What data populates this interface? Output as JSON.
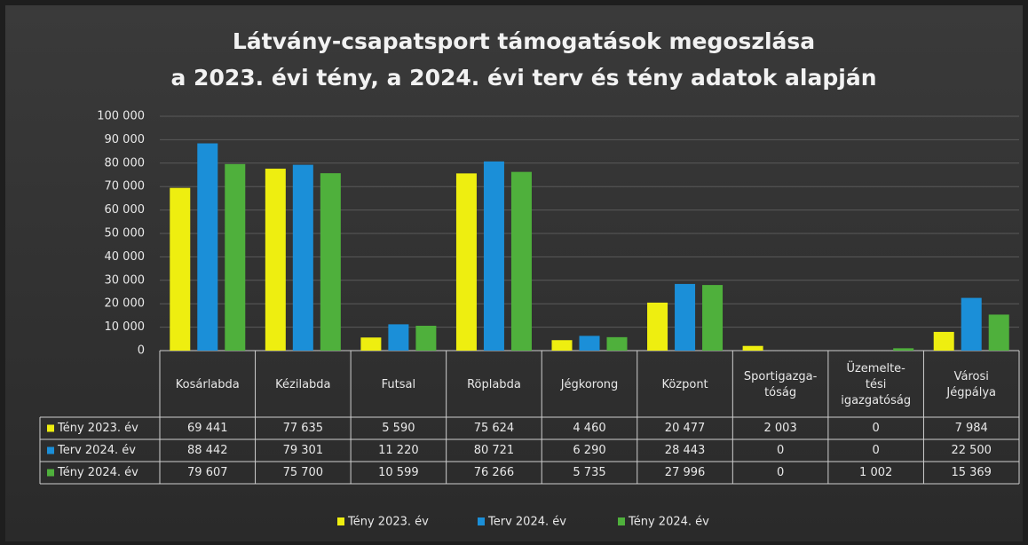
{
  "chart_data": {
    "type": "bar",
    "title": [
      "Látvány-csapatsport támogatások megoszlása",
      "a 2023. évi tény, a 2024. évi terv és tény adatok alapján"
    ],
    "categories": [
      "Kosárlabda",
      "Kézilabda",
      "Futsal",
      "Röplabda",
      "Jégkorong",
      "Központ",
      "Sportigazga-\ntóság",
      "Üzemelte-\ntési\nigazgatóság",
      "Városi\nJégpálya"
    ],
    "series": [
      {
        "name": "Tény 2023. év",
        "color": "#eeee10",
        "values": [
          69441,
          77635,
          5590,
          75624,
          4460,
          20477,
          2003,
          0,
          7984
        ],
        "value_labels": [
          "69 441",
          "77 635",
          "5 590",
          "75 624",
          "4 460",
          "20 477",
          "2 003",
          "0",
          "7 984"
        ]
      },
      {
        "name": "Terv 2024. év",
        "color": "#1b8fd8",
        "values": [
          88442,
          79301,
          11220,
          80721,
          6290,
          28443,
          0,
          0,
          22500
        ],
        "value_labels": [
          "88 442",
          "79 301",
          "11 220",
          "80 721",
          "6 290",
          "28 443",
          "0",
          "0",
          "22 500"
        ]
      },
      {
        "name": "Tény 2024. év",
        "color": "#4fb03c",
        "values": [
          79607,
          75700,
          10599,
          76266,
          5735,
          27996,
          0,
          1002,
          15369
        ],
        "value_labels": [
          "79 607",
          "75 700",
          "10 599",
          "76 266",
          "5 735",
          "27 996",
          "0",
          "1 002",
          "15 369"
        ]
      }
    ],
    "ylim": [
      0,
      100000
    ],
    "yticks": [
      0,
      {
        "value": 10000,
        "label": "10 000"
      },
      {
        "value": 20000,
        "label": "20 000"
      },
      {
        "value": 30000,
        "label": "30 000"
      },
      {
        "value": 40000,
        "label": "40 000"
      },
      {
        "value": 50000,
        "label": "50 000"
      },
      {
        "value": 60000,
        "label": "60 000"
      },
      {
        "value": 70000,
        "label": "70 000"
      },
      {
        "value": 80000,
        "label": "80 000"
      },
      {
        "value": 90000,
        "label": "90 000"
      },
      {
        "value": 100000,
        "label": "100 000"
      }
    ],
    "grid": true
  }
}
